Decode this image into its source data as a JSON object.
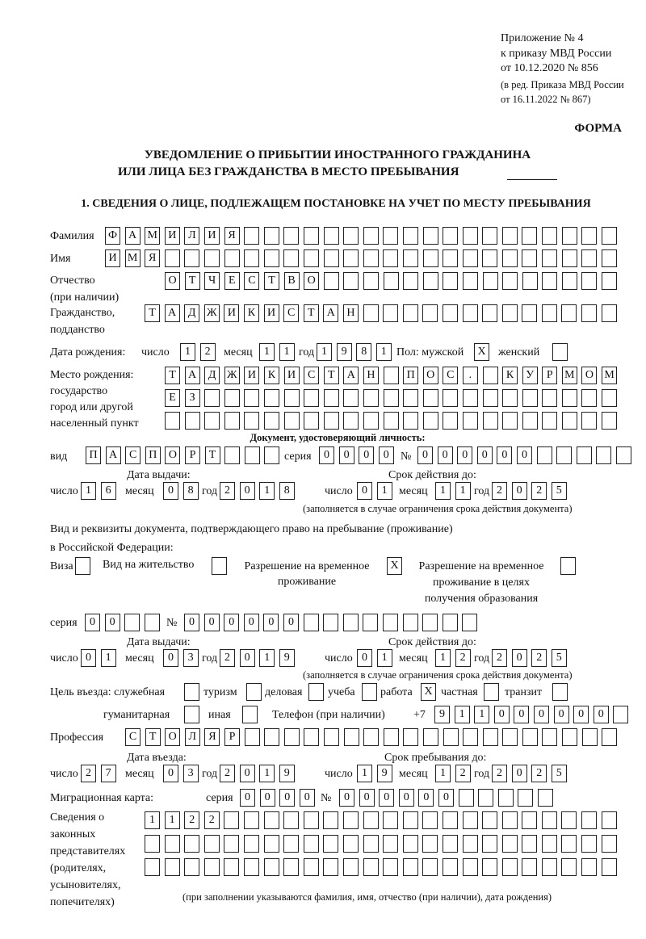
{
  "header": {
    "appendix_lines": [
      "Приложение № 4",
      "к приказу МВД России",
      "от 10.12.2020 № 856"
    ],
    "edition_lines": [
      "(в ред. Приказа МВД России",
      "от 16.11.2022 № 867)"
    ],
    "form_label": "ФОРМА",
    "title_line1": "УВЕДОМЛЕНИЕ О ПРИБЫТИИ ИНОСТРАННОГО ГРАЖДАНИНА",
    "title_line2": "ИЛИ ЛИЦА БЕЗ ГРАЖДАНСТВА В МЕСТО ПРЕБЫВАНИЯ",
    "section1": "1. СВЕДЕНИЯ О ЛИЦЕ, ПОДЛЕЖАЩЕМ ПОСТАНОВКЕ НА УЧЕТ ПО МЕСТУ ПРЕБЫВАНИЯ"
  },
  "labels": {
    "surname": "Фамилия",
    "name": "Имя",
    "patronymic": "Отчество",
    "patronymic_note": "(при наличии)",
    "citizenship1": "Гражданство,",
    "citizenship2": "подданство",
    "birth_date": "Дата рождения:",
    "day": "число",
    "month": "месяц",
    "year": "год",
    "sex_male": "Пол: мужской",
    "sex_female": "женский",
    "birthplace": [
      "Место рождения:",
      "государство",
      "город или другой",
      "населенный пункт"
    ],
    "id_doc_heading": "Документ, удостоверяющий личность:",
    "kind": "вид",
    "series": "серия",
    "number": "№",
    "issue_date": "Дата выдачи:",
    "valid_until": "Срок действия до:",
    "validity_note": "(заполняется в случае ограничения срока действия документа)",
    "right_doc1": "Вид и реквизиты документа, подтверждающего право на пребывание (проживание)",
    "right_doc2": "в Российской Федерации:",
    "visa": "Виза",
    "residence_permit": "Вид на жительство",
    "temp_residence": [
      "Разрешение на временное",
      "проживание"
    ],
    "temp_residence_edu": [
      "Разрешение на временное",
      "проживание в целях",
      "получения образования"
    ],
    "purpose": "Цель въезда: служебная",
    "tourism": "туризм",
    "business": "деловая",
    "study": "учеба",
    "work": "работа",
    "private": "частная",
    "transit": "транзит",
    "humanitarian": "гуманитарная",
    "other": "иная",
    "phone": "Телефон (при наличии)",
    "phone_prefix": "+7",
    "profession": "Профессия",
    "entry_date": "Дата въезда:",
    "stay_until": "Срок пребывания до:",
    "migration_card": "Миграционная карта:",
    "legal_reps": [
      "Сведения о",
      "законных",
      "представителях",
      "(родителях,",
      "усыновителях,",
      "попечителях)"
    ],
    "legal_reps_note": "(при заполнении указываются фамилия, имя, отчество (при наличии), дата рождения)"
  },
  "values": {
    "surname": "ФАМИЛИЯ",
    "name": "ИМЯ",
    "patronymic": "ОТЧЕСТВО",
    "citizenship": "ТАДЖИКИСТАН",
    "birth": {
      "day": "12",
      "month": "11",
      "year": "1981"
    },
    "sex_male": "X",
    "sex_female": "",
    "birthplace": [
      "ТАДЖИКИСТАН ПОС. КУРМОМБ",
      "ЕЗ",
      ""
    ],
    "id_doc": {
      "kind": "ПАСПОРТ",
      "series": "0000",
      "number": "000000",
      "issue": {
        "day": "16",
        "month": "08",
        "year": "2018"
      },
      "valid": {
        "day": "01",
        "month": "11",
        "year": "2025"
      }
    },
    "right_doc": {
      "visa": "",
      "residence_permit": "",
      "temp_residence": "X",
      "temp_residence_edu": "",
      "series": "00",
      "number": "000000",
      "issue": {
        "day": "01",
        "month": "03",
        "year": "2019"
      },
      "valid": {
        "day": "01",
        "month": "12",
        "year": "2025"
      }
    },
    "purpose": {
      "official": "",
      "tourism": "",
      "business": "",
      "study": "",
      "work": "X",
      "private": "",
      "transit": "",
      "humanitarian": "",
      "other": ""
    },
    "phone": "911000000",
    "profession": "СТОЛЯР",
    "entry": {
      "day": "27",
      "month": "03",
      "year": "2019"
    },
    "stay_until": {
      "day": "19",
      "month": "12",
      "year": "2025"
    },
    "migration_card": {
      "series": "0000",
      "number": "000000"
    },
    "legal_reps": [
      "1122",
      "",
      ""
    ]
  }
}
